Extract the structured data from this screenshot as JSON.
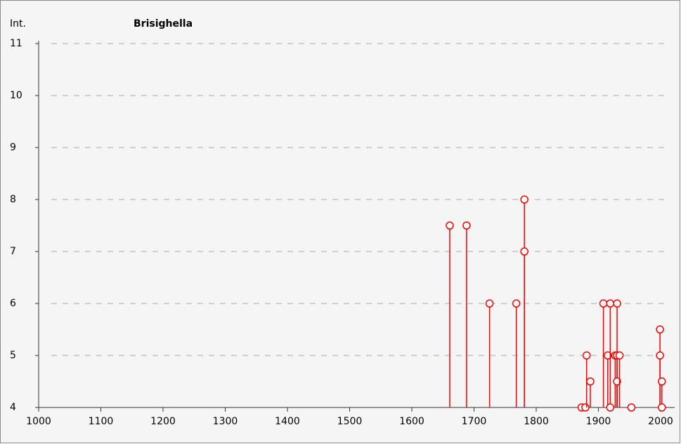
{
  "chart_data": {
    "type": "stem",
    "title": "Brisighella",
    "y_label": "Int.",
    "x": [
      1661,
      1688,
      1725,
      1768,
      1781,
      1781,
      1873,
      1879,
      1881,
      1887,
      1908,
      1915,
      1919,
      1919,
      1927,
      1930,
      1930,
      1930,
      1934,
      1953,
      1999,
      1999,
      2002,
      2002
    ],
    "values": [
      7.5,
      7.5,
      6,
      6,
      8,
      7,
      4,
      4,
      5,
      4.5,
      6,
      5,
      6,
      4,
      5,
      6,
      5,
      4.5,
      5,
      4,
      5.5,
      5,
      4.5,
      4
    ],
    "color": "#ff0000",
    "xlim": [
      1000,
      2000
    ],
    "xticks": [
      1000,
      1100,
      1200,
      1300,
      1400,
      1500,
      1600,
      1700,
      1800,
      1900,
      2000
    ],
    "ylim": [
      4,
      11
    ],
    "yticks": [
      4,
      5,
      6,
      7,
      8,
      9,
      10,
      11
    ],
    "grid": true
  }
}
